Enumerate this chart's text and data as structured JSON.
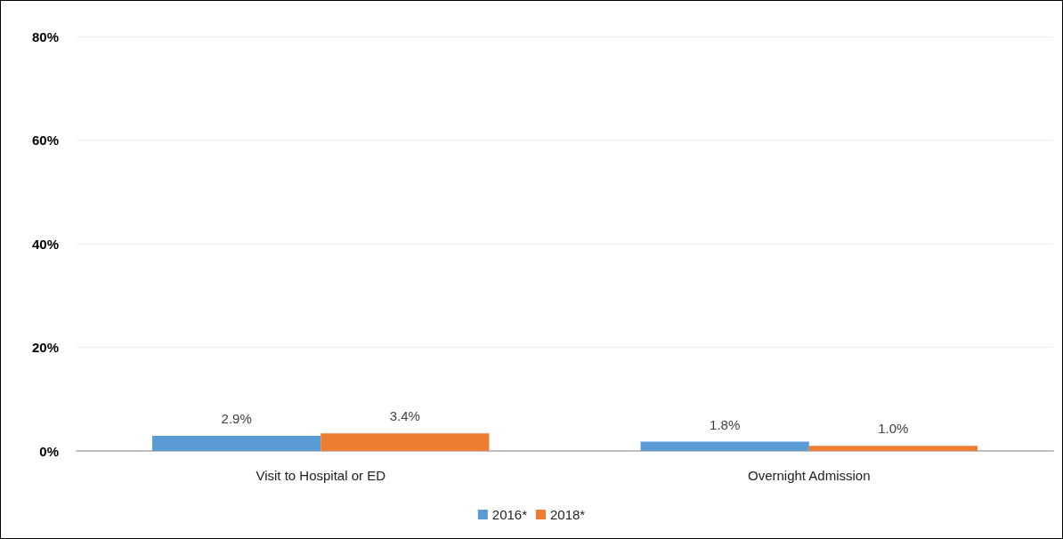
{
  "chart_data": {
    "type": "bar",
    "categories": [
      "Visit to Hospital or ED",
      "Overnight Admission"
    ],
    "series": [
      {
        "name": "2016*",
        "color": "#5b9bd5",
        "values": [
          2.9,
          1.8
        ],
        "value_labels": [
          "2.9%",
          "1.8%"
        ]
      },
      {
        "name": "2018*",
        "color": "#ed7d31",
        "values": [
          3.4,
          1.0
        ],
        "value_labels": [
          "3.4%",
          "1.0%"
        ]
      }
    ],
    "ylim": [
      0,
      80
    ],
    "yticks": [
      {
        "value": 0,
        "label": "0%"
      },
      {
        "value": 20,
        "label": "20%"
      },
      {
        "value": 40,
        "label": "40%"
      },
      {
        "value": 60,
        "label": "60%"
      },
      {
        "value": 80,
        "label": "80%"
      }
    ],
    "grid": "y",
    "legend": "bottom"
  }
}
